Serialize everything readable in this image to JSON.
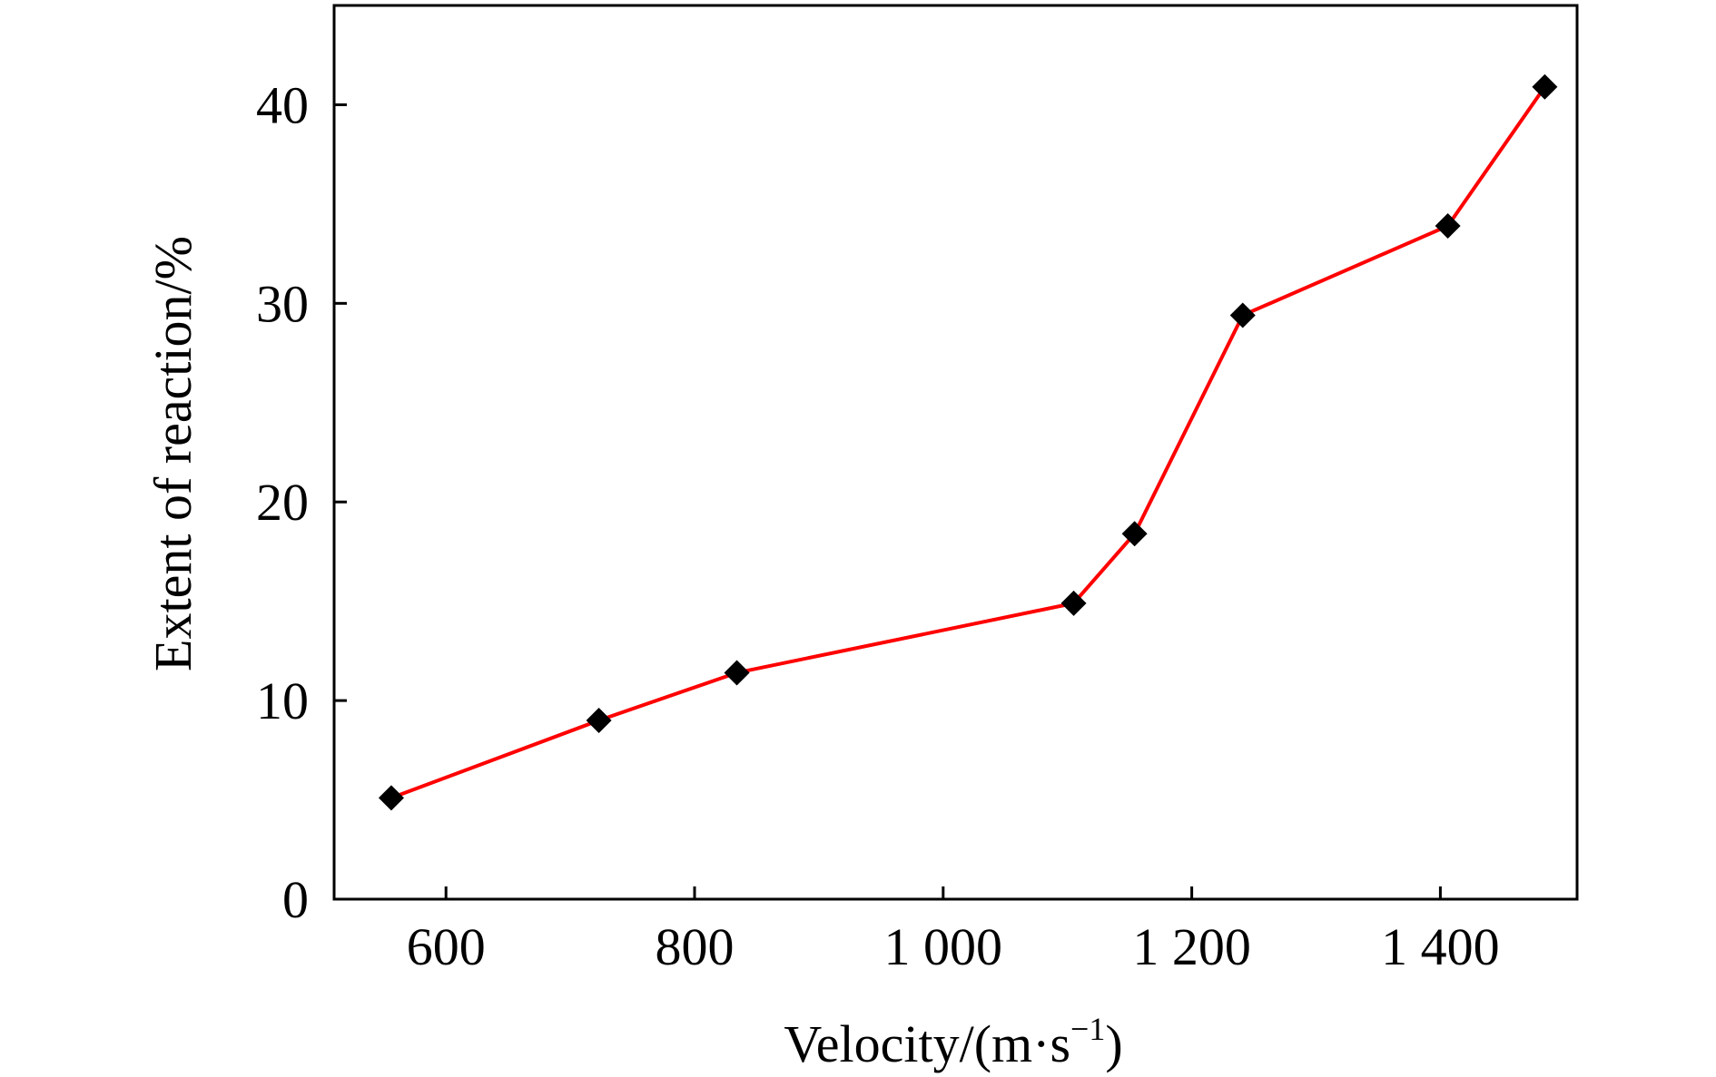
{
  "chart_data": {
    "type": "line",
    "xlabel": "Velocity/(m·s",
    "xlabel_sup": "−1",
    "xlabel_close": ")",
    "ylabel": "Extent of reaction/%",
    "xlim": [
      510,
      1510
    ],
    "ylim": [
      0,
      45
    ],
    "x_ticks": [
      600,
      800,
      1000,
      1200,
      1400
    ],
    "x_tick_labels": [
      "600",
      "800",
      "1 000",
      "1 200",
      "1 400"
    ],
    "y_ticks": [
      0,
      10,
      20,
      30,
      40
    ],
    "y_tick_labels": [
      "0",
      "10",
      "20",
      "30",
      "40"
    ],
    "grid": false,
    "series": [
      {
        "color": "#ff0000",
        "marker": "diamond",
        "marker_color": "#000000",
        "x": [
          556,
          723,
          834,
          1105,
          1154,
          1241,
          1406,
          1484
        ],
        "y": [
          5.1,
          9.0,
          11.4,
          14.9,
          18.4,
          29.4,
          33.9,
          40.9
        ]
      }
    ]
  }
}
